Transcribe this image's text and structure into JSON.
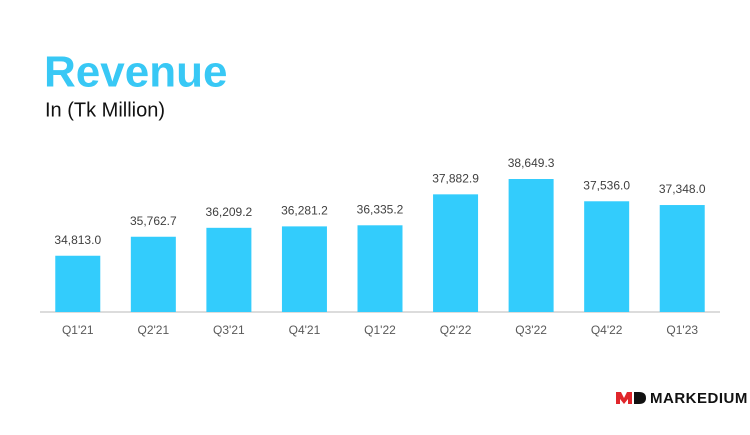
{
  "chart_data": {
    "type": "bar",
    "title": "Revenue",
    "subtitle": "In (Tk Million)",
    "categories": [
      "Q1'21",
      "Q2'21",
      "Q3'21",
      "Q4'21",
      "Q1'22",
      "Q2'22",
      "Q3'22",
      "Q4'22",
      "Q1'23"
    ],
    "values": [
      34813.0,
      35762.7,
      36209.2,
      36281.2,
      36335.2,
      37882.9,
      38649.3,
      37536.0,
      37348.0
    ],
    "value_labels": [
      "34,813.0",
      "35,762.7",
      "36,209.2",
      "36,281.2",
      "36,335.2",
      "37,882.9",
      "38,649.3",
      "37,536.0",
      "37,348.0"
    ],
    "color": "#33ccfc",
    "title_color": "#38c8f5",
    "ylim": [
      32000,
      40000
    ],
    "brand": "MARKEDIUM"
  }
}
